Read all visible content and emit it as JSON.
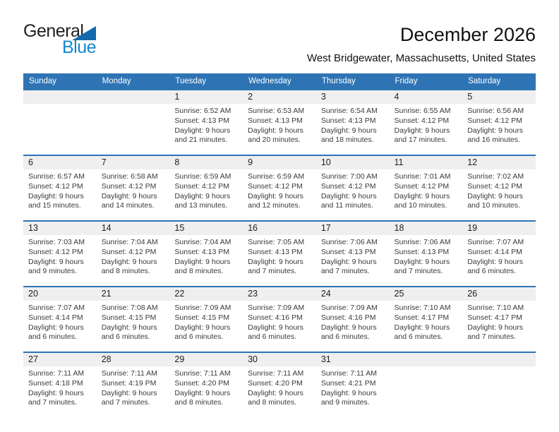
{
  "page": {
    "title": "December 2026",
    "subtitle": "West Bridgewater, Massachusetts, United States"
  },
  "logo": {
    "word1": "General",
    "word2": "Blue"
  },
  "colors": {
    "header_bg": "#2e74b5",
    "header_text": "#ffffff",
    "day_band_bg": "#efefef",
    "week_divider": "#2e74b5",
    "logo_triangle": "#1569ad",
    "logo_blue": "#1787cf"
  },
  "weekday_headers": [
    "Sunday",
    "Monday",
    "Tuesday",
    "Wednesday",
    "Thursday",
    "Friday",
    "Saturday"
  ],
  "labels": {
    "sunrise": "Sunrise:",
    "sunset": "Sunset:",
    "daylight": "Daylight:"
  },
  "weeks": [
    [
      null,
      null,
      {
        "day": "1",
        "sunrise": "6:52 AM",
        "sunset": "4:13 PM",
        "daylight1": "9 hours",
        "daylight2": "and 21 minutes."
      },
      {
        "day": "2",
        "sunrise": "6:53 AM",
        "sunset": "4:13 PM",
        "daylight1": "9 hours",
        "daylight2": "and 20 minutes."
      },
      {
        "day": "3",
        "sunrise": "6:54 AM",
        "sunset": "4:13 PM",
        "daylight1": "9 hours",
        "daylight2": "and 18 minutes."
      },
      {
        "day": "4",
        "sunrise": "6:55 AM",
        "sunset": "4:12 PM",
        "daylight1": "9 hours",
        "daylight2": "and 17 minutes."
      },
      {
        "day": "5",
        "sunrise": "6:56 AM",
        "sunset": "4:12 PM",
        "daylight1": "9 hours",
        "daylight2": "and 16 minutes."
      }
    ],
    [
      {
        "day": "6",
        "sunrise": "6:57 AM",
        "sunset": "4:12 PM",
        "daylight1": "9 hours",
        "daylight2": "and 15 minutes."
      },
      {
        "day": "7",
        "sunrise": "6:58 AM",
        "sunset": "4:12 PM",
        "daylight1": "9 hours",
        "daylight2": "and 14 minutes."
      },
      {
        "day": "8",
        "sunrise": "6:59 AM",
        "sunset": "4:12 PM",
        "daylight1": "9 hours",
        "daylight2": "and 13 minutes."
      },
      {
        "day": "9",
        "sunrise": "6:59 AM",
        "sunset": "4:12 PM",
        "daylight1": "9 hours",
        "daylight2": "and 12 minutes."
      },
      {
        "day": "10",
        "sunrise": "7:00 AM",
        "sunset": "4:12 PM",
        "daylight1": "9 hours",
        "daylight2": "and 11 minutes."
      },
      {
        "day": "11",
        "sunrise": "7:01 AM",
        "sunset": "4:12 PM",
        "daylight1": "9 hours",
        "daylight2": "and 10 minutes."
      },
      {
        "day": "12",
        "sunrise": "7:02 AM",
        "sunset": "4:12 PM",
        "daylight1": "9 hours",
        "daylight2": "and 10 minutes."
      }
    ],
    [
      {
        "day": "13",
        "sunrise": "7:03 AM",
        "sunset": "4:12 PM",
        "daylight1": "9 hours",
        "daylight2": "and 9 minutes."
      },
      {
        "day": "14",
        "sunrise": "7:04 AM",
        "sunset": "4:12 PM",
        "daylight1": "9 hours",
        "daylight2": "and 8 minutes."
      },
      {
        "day": "15",
        "sunrise": "7:04 AM",
        "sunset": "4:13 PM",
        "daylight1": "9 hours",
        "daylight2": "and 8 minutes."
      },
      {
        "day": "16",
        "sunrise": "7:05 AM",
        "sunset": "4:13 PM",
        "daylight1": "9 hours",
        "daylight2": "and 7 minutes."
      },
      {
        "day": "17",
        "sunrise": "7:06 AM",
        "sunset": "4:13 PM",
        "daylight1": "9 hours",
        "daylight2": "and 7 minutes."
      },
      {
        "day": "18",
        "sunrise": "7:06 AM",
        "sunset": "4:13 PM",
        "daylight1": "9 hours",
        "daylight2": "and 7 minutes."
      },
      {
        "day": "19",
        "sunrise": "7:07 AM",
        "sunset": "4:14 PM",
        "daylight1": "9 hours",
        "daylight2": "and 6 minutes."
      }
    ],
    [
      {
        "day": "20",
        "sunrise": "7:07 AM",
        "sunset": "4:14 PM",
        "daylight1": "9 hours",
        "daylight2": "and 6 minutes."
      },
      {
        "day": "21",
        "sunrise": "7:08 AM",
        "sunset": "4:15 PM",
        "daylight1": "9 hours",
        "daylight2": "and 6 minutes."
      },
      {
        "day": "22",
        "sunrise": "7:09 AM",
        "sunset": "4:15 PM",
        "daylight1": "9 hours",
        "daylight2": "and 6 minutes."
      },
      {
        "day": "23",
        "sunrise": "7:09 AM",
        "sunset": "4:16 PM",
        "daylight1": "9 hours",
        "daylight2": "and 6 minutes."
      },
      {
        "day": "24",
        "sunrise": "7:09 AM",
        "sunset": "4:16 PM",
        "daylight1": "9 hours",
        "daylight2": "and 6 minutes."
      },
      {
        "day": "25",
        "sunrise": "7:10 AM",
        "sunset": "4:17 PM",
        "daylight1": "9 hours",
        "daylight2": "and 6 minutes."
      },
      {
        "day": "26",
        "sunrise": "7:10 AM",
        "sunset": "4:17 PM",
        "daylight1": "9 hours",
        "daylight2": "and 7 minutes."
      }
    ],
    [
      {
        "day": "27",
        "sunrise": "7:11 AM",
        "sunset": "4:18 PM",
        "daylight1": "9 hours",
        "daylight2": "and 7 minutes."
      },
      {
        "day": "28",
        "sunrise": "7:11 AM",
        "sunset": "4:19 PM",
        "daylight1": "9 hours",
        "daylight2": "and 7 minutes."
      },
      {
        "day": "29",
        "sunrise": "7:11 AM",
        "sunset": "4:20 PM",
        "daylight1": "9 hours",
        "daylight2": "and 8 minutes."
      },
      {
        "day": "30",
        "sunrise": "7:11 AM",
        "sunset": "4:20 PM",
        "daylight1": "9 hours",
        "daylight2": "and 8 minutes."
      },
      {
        "day": "31",
        "sunrise": "7:11 AM",
        "sunset": "4:21 PM",
        "daylight1": "9 hours",
        "daylight2": "and 9 minutes."
      },
      null,
      null
    ]
  ]
}
